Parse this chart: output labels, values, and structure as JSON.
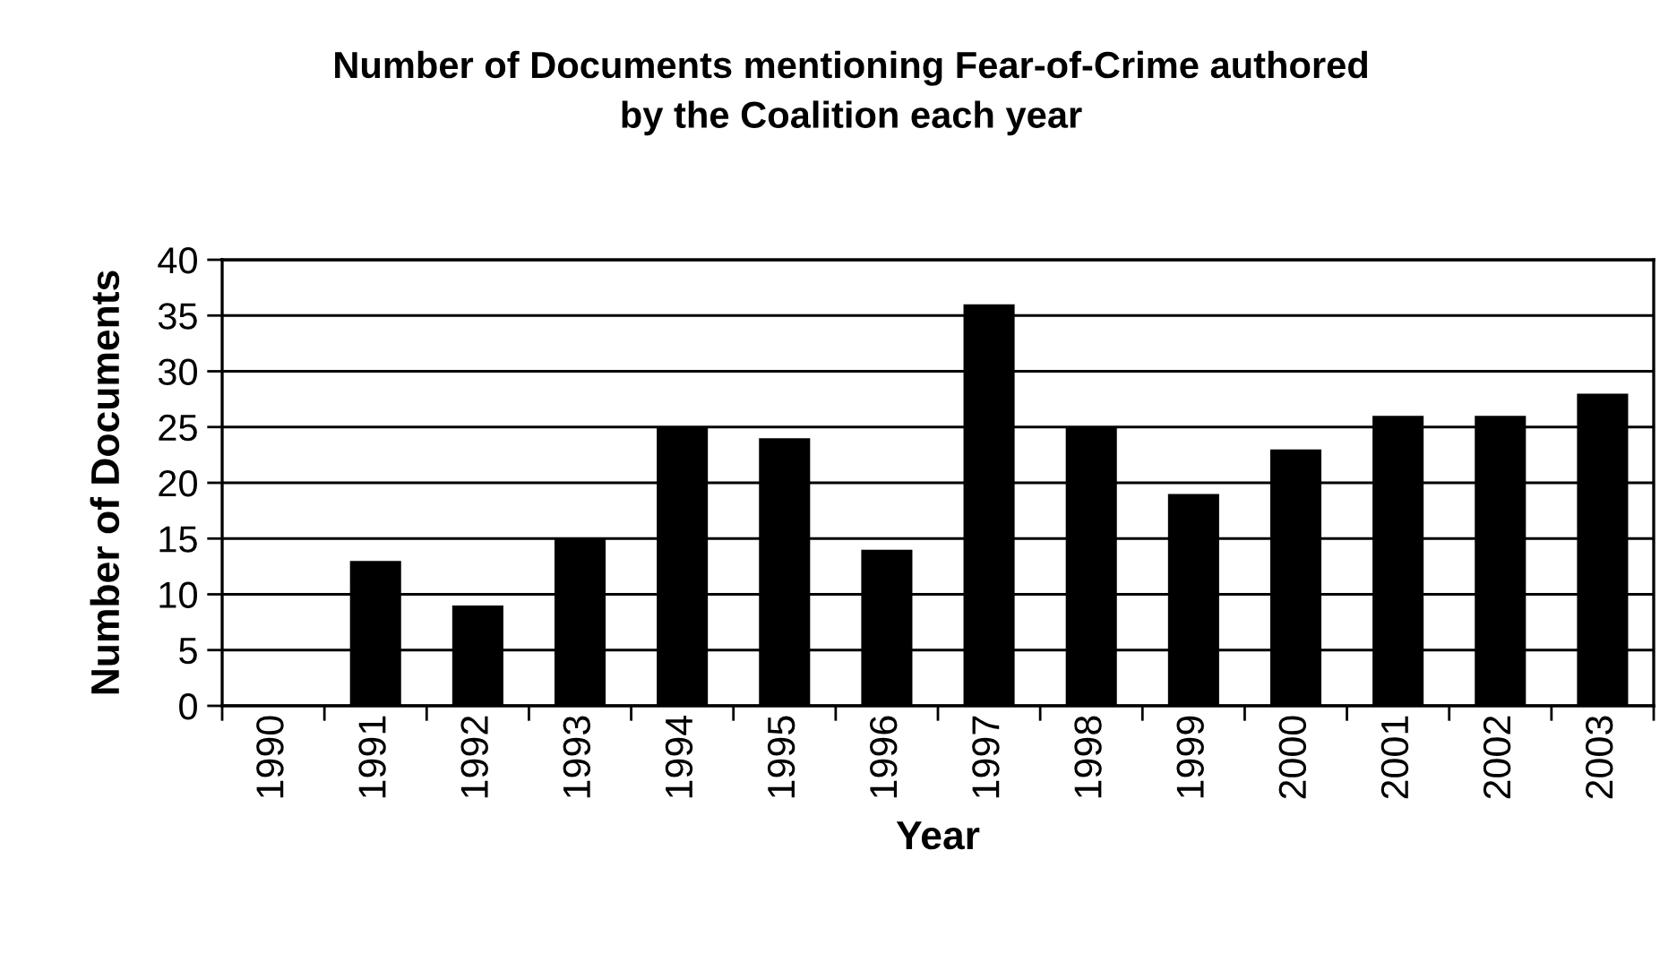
{
  "chart_data": {
    "type": "bar",
    "title": "Number of Documents mentioning Fear-of-Crime authored\nby the Coalition each year",
    "xlabel": "Year",
    "ylabel": "Number of Documents",
    "categories": [
      "1990",
      "1991",
      "1992",
      "1993",
      "1994",
      "1995",
      "1996",
      "1997",
      "1998",
      "1999",
      "2000",
      "2001",
      "2002",
      "2003"
    ],
    "values": [
      0,
      13,
      9,
      15,
      25,
      24,
      14,
      36,
      25,
      19,
      23,
      26,
      26,
      28
    ],
    "color": "#000000",
    "ylim": [
      0,
      40
    ],
    "yticks": [
      0,
      5,
      10,
      15,
      20,
      25,
      30,
      35,
      40
    ],
    "grid": "y"
  }
}
